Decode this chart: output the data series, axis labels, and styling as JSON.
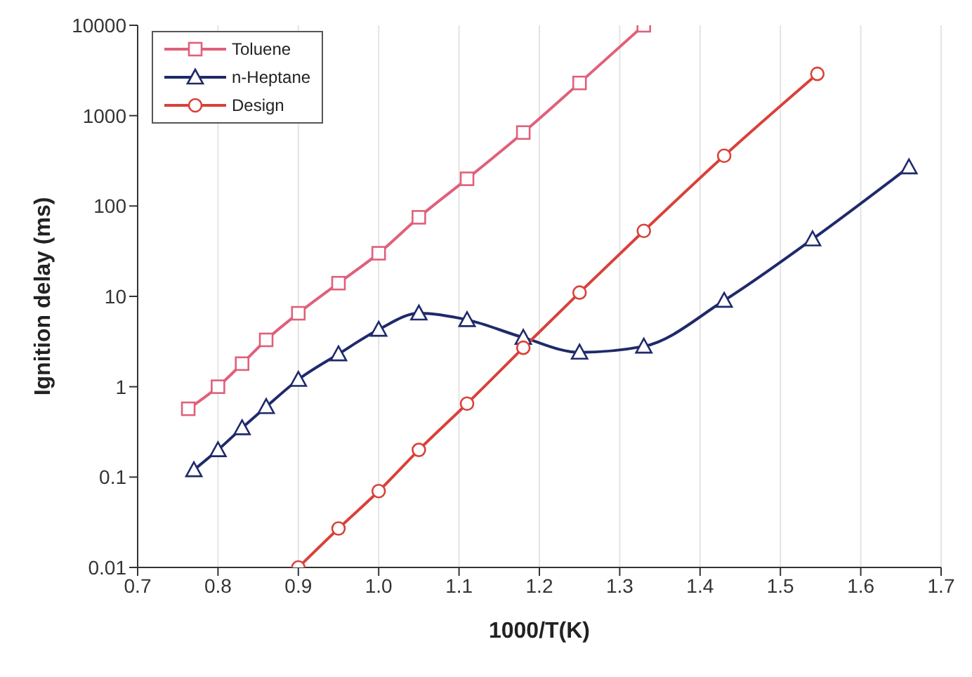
{
  "chart_data": {
    "type": "line",
    "xlabel": "1000/T(K)",
    "ylabel": "Ignition delay (ms)",
    "log": "y",
    "grid": "x",
    "legend": "top left",
    "line_style": "solid",
    "xlim": [
      0.7,
      1.7
    ],
    "xticks": [
      0.7,
      0.8,
      0.9,
      {
        "value": 1.0,
        "label": "1.0"
      },
      1.1,
      1.2,
      1.3,
      1.4,
      1.5,
      1.6,
      1.7
    ],
    "ylim": [
      0.01,
      10000
    ],
    "yticks": [
      {
        "value": 0.01,
        "label": "0.01"
      },
      0.1,
      1,
      10,
      100,
      1000,
      10000
    ],
    "series": [
      {
        "name": "Toluene",
        "color": "#e0607a",
        "marker": "square",
        "x": [
          0.763,
          0.8,
          0.83,
          0.86,
          0.9,
          0.95,
          1.0,
          1.05,
          1.11,
          1.18,
          1.25,
          1.33
        ],
        "values": [
          0.57,
          1.0,
          1.8,
          3.3,
          6.5,
          14,
          30,
          75,
          200,
          650,
          2300,
          10000
        ]
      },
      {
        "name": "n-Heptane",
        "color": "#1f2a6b",
        "marker": "triangle",
        "x": [
          0.77,
          0.8,
          0.83,
          0.86,
          0.9,
          0.95,
          1.0,
          1.05,
          1.11,
          1.18,
          1.25,
          1.33,
          1.43,
          1.54,
          1.66
        ],
        "values": [
          0.12,
          0.2,
          0.35,
          0.6,
          1.2,
          2.3,
          4.3,
          6.5,
          5.5,
          3.5,
          2.4,
          2.8,
          9,
          43,
          270
        ]
      },
      {
        "name": "Design",
        "color": "#d9413a",
        "marker": "circle",
        "x": [
          0.9,
          0.95,
          1.0,
          1.05,
          1.11,
          1.18,
          1.25,
          1.33,
          1.43,
          1.546
        ],
        "values": [
          0.01,
          0.027,
          0.07,
          0.2,
          0.65,
          2.7,
          11,
          53,
          360,
          2900
        ]
      }
    ]
  }
}
